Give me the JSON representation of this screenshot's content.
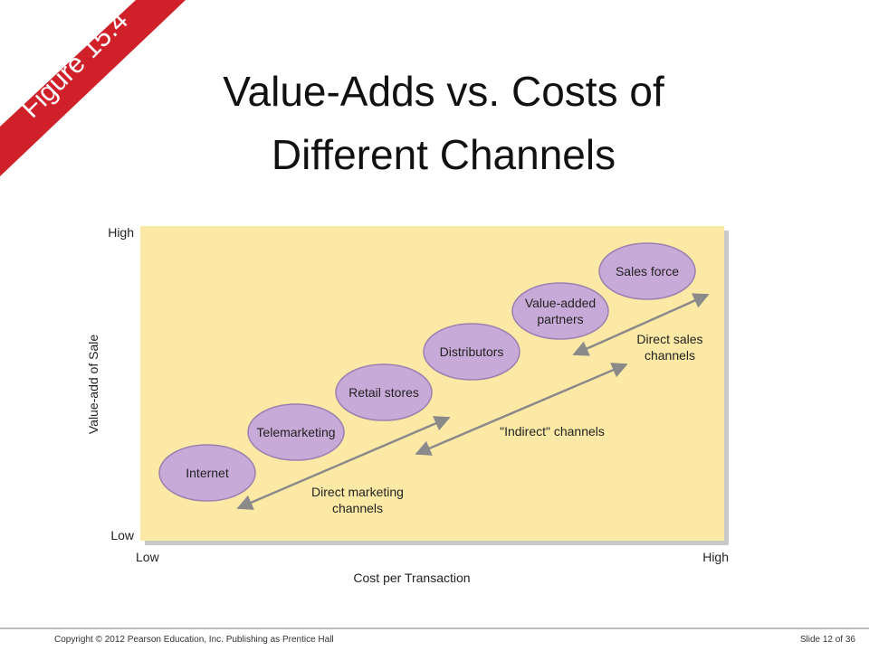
{
  "banner": "Figure 15.4",
  "header": {
    "title": "Value-Adds vs. Costs of Different Channels"
  },
  "diagram": {
    "y_axis": {
      "label": "Value-add of Sale",
      "high": "High",
      "low": "Low"
    },
    "x_axis": {
      "label": "Cost per Transaction",
      "low": "Low",
      "high": "High"
    },
    "nodes": [
      {
        "label": "Internet"
      },
      {
        "label": "Telemarketing"
      },
      {
        "label": "Retail stores"
      },
      {
        "label": "Distributors"
      },
      {
        "label": "Value-added partners"
      },
      {
        "label": "Sales force"
      }
    ],
    "arrows": [
      {
        "label": "Direct marketing channels"
      },
      {
        "label": "\"Indirect\" channels"
      },
      {
        "label": "Direct sales channels"
      }
    ]
  },
  "footer": {
    "copyright": "Copyright © 2012 Pearson Education, Inc. Publishing as Prentice Hall",
    "slide": "Slide 12 of 36"
  }
}
